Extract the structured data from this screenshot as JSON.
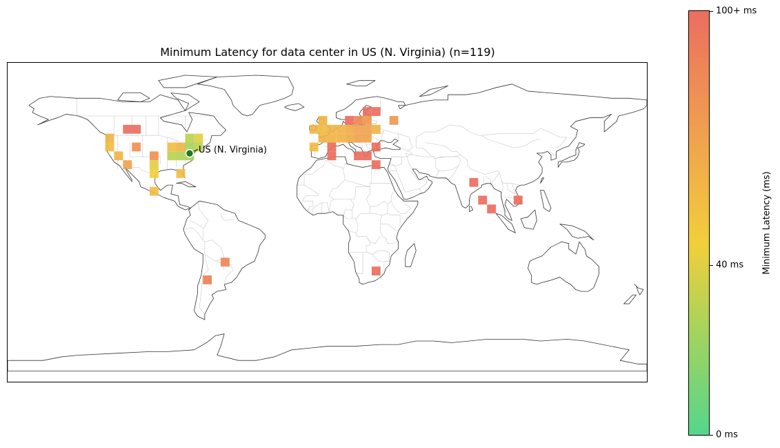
{
  "title": "Minimum Latency for data center in US (N. Virginia) (n=119)",
  "datacenter": {
    "label": "US (N. Virginia)",
    "lon": -77.5,
    "lat": 38.9,
    "color": "#1e7b1e"
  },
  "colorbar": {
    "title": "Minimum Latency (ms)",
    "ticks": [
      {
        "value": 0,
        "label": "0 ms"
      },
      {
        "value": 40,
        "label": "40 ms"
      },
      {
        "value": 100,
        "label": "100+ ms"
      }
    ],
    "range": [
      0,
      100
    ],
    "stops": [
      {
        "value": 0,
        "color": "#55d68b"
      },
      {
        "value": 25,
        "color": "#a7d35c"
      },
      {
        "value": 45,
        "color": "#f2cf3b"
      },
      {
        "value": 70,
        "color": "#f0a24e"
      },
      {
        "value": 100,
        "color": "#ec6e5f"
      }
    ]
  },
  "map": {
    "projection": "plate-carree",
    "extent": {
      "lon": [
        -180,
        180
      ],
      "lat": [
        -90,
        90
      ]
    },
    "coastline_color": "#333333",
    "border_color": "#c8c8c8"
  },
  "chart_data": {
    "type": "heatmap",
    "title": "Minimum Latency for data center in US (N. Virginia) (n=119)",
    "colorbar_label": "Minimum Latency (ms)",
    "cell_size_deg": 5,
    "cells": [
      {
        "lon": -122.5,
        "lat": 47.5,
        "latency": 60
      },
      {
        "lon": -122.5,
        "lat": 42.5,
        "latency": 55
      },
      {
        "lon": -117.5,
        "lat": 37.5,
        "latency": 60
      },
      {
        "lon": -112.5,
        "lat": 32.5,
        "latency": 70
      },
      {
        "lon": -112.5,
        "lat": 52.5,
        "latency": 100
      },
      {
        "lon": -107.5,
        "lat": 52.5,
        "latency": 100
      },
      {
        "lon": -107.5,
        "lat": 42.5,
        "latency": 80
      },
      {
        "lon": -97.5,
        "lat": 37.5,
        "latency": 80
      },
      {
        "lon": -97.5,
        "lat": 27.5,
        "latency": 45
      },
      {
        "lon": -97.5,
        "lat": 32.5,
        "latency": 40
      },
      {
        "lon": -97.5,
        "lat": 17.5,
        "latency": 55
      },
      {
        "lon": -87.5,
        "lat": 42.5,
        "latency": 55
      },
      {
        "lon": -87.5,
        "lat": 37.5,
        "latency": 30
      },
      {
        "lon": -82.5,
        "lat": 42.5,
        "latency": 60
      },
      {
        "lon": -82.5,
        "lat": 37.5,
        "latency": 28
      },
      {
        "lon": -82.5,
        "lat": 27.5,
        "latency": 55
      },
      {
        "lon": -77.5,
        "lat": 47.5,
        "latency": 30
      },
      {
        "lon": -77.5,
        "lat": 42.5,
        "latency": 25
      },
      {
        "lon": -77.5,
        "lat": 37.5,
        "latency": 25
      },
      {
        "lon": -72.5,
        "lat": 47.5,
        "latency": 40
      },
      {
        "lon": -72.5,
        "lat": 42.5,
        "latency": 30
      },
      {
        "lon": -67.5,
        "lat": -32.5,
        "latency": 90
      },
      {
        "lon": -57.5,
        "lat": -22.5,
        "latency": 85
      },
      {
        "lon": -7.5,
        "lat": 52.5,
        "latency": 60
      },
      {
        "lon": -7.5,
        "lat": 42.5,
        "latency": 55
      },
      {
        "lon": -2.5,
        "lat": 57.5,
        "latency": 60
      },
      {
        "lon": -2.5,
        "lat": 52.5,
        "latency": 55
      },
      {
        "lon": -2.5,
        "lat": 47.5,
        "latency": 60
      },
      {
        "lon": 2.5,
        "lat": 52.5,
        "latency": 60
      },
      {
        "lon": 2.5,
        "lat": 47.5,
        "latency": 60
      },
      {
        "lon": 2.5,
        "lat": 42.5,
        "latency": 100
      },
      {
        "lon": 2.5,
        "lat": 37.5,
        "latency": 100
      },
      {
        "lon": 7.5,
        "lat": 52.5,
        "latency": 60
      },
      {
        "lon": 7.5,
        "lat": 47.5,
        "latency": 60
      },
      {
        "lon": 12.5,
        "lat": 57.5,
        "latency": 100
      },
      {
        "lon": 12.5,
        "lat": 52.5,
        "latency": 65
      },
      {
        "lon": 12.5,
        "lat": 47.5,
        "latency": 65
      },
      {
        "lon": 17.5,
        "lat": 57.5,
        "latency": 85
      },
      {
        "lon": 17.5,
        "lat": 52.5,
        "latency": 70
      },
      {
        "lon": 17.5,
        "lat": 47.5,
        "latency": 70
      },
      {
        "lon": 17.5,
        "lat": 37.5,
        "latency": 100
      },
      {
        "lon": 22.5,
        "lat": 62.5,
        "latency": 100
      },
      {
        "lon": 22.5,
        "lat": 57.5,
        "latency": 75
      },
      {
        "lon": 22.5,
        "lat": 52.5,
        "latency": 70
      },
      {
        "lon": 22.5,
        "lat": 47.5,
        "latency": 70
      },
      {
        "lon": 22.5,
        "lat": 37.5,
        "latency": 100
      },
      {
        "lon": 27.5,
        "lat": 62.5,
        "latency": 100
      },
      {
        "lon": 27.5,
        "lat": 52.5,
        "latency": 60
      },
      {
        "lon": 27.5,
        "lat": 42.5,
        "latency": 100
      },
      {
        "lon": 27.5,
        "lat": 32.5,
        "latency": 100
      },
      {
        "lon": 37.5,
        "lat": 57.5,
        "latency": 75
      },
      {
        "lon": 82.5,
        "lat": 22.5,
        "latency": 100
      },
      {
        "lon": 87.5,
        "lat": 12.5,
        "latency": 100
      },
      {
        "lon": 92.5,
        "lat": 7.5,
        "latency": 100
      },
      {
        "lon": 107.5,
        "lat": 12.5,
        "latency": 100
      },
      {
        "lon": 27.5,
        "lat": -27.5,
        "latency": 100
      }
    ]
  }
}
